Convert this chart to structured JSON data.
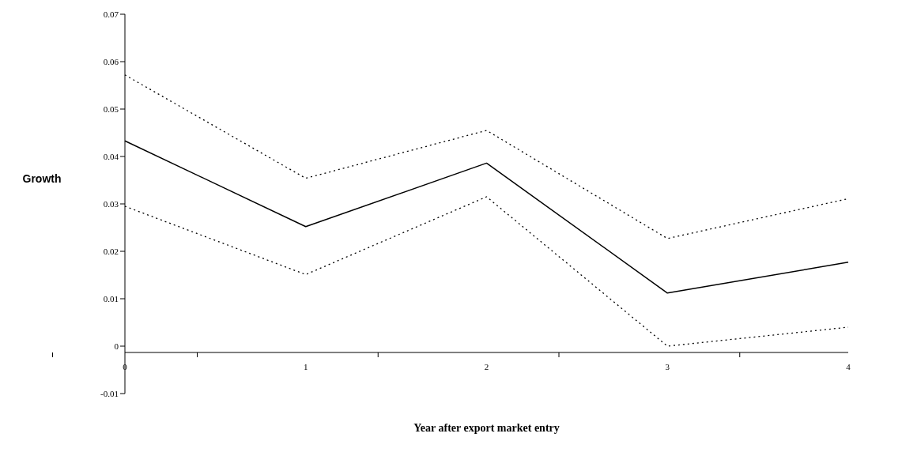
{
  "chart_data": {
    "type": "line",
    "xlabel": "Year after export market entry",
    "ylabel": "Growth",
    "categories": [
      "0",
      "1",
      "2",
      "3",
      "4"
    ],
    "series": [
      {
        "color": "#000000",
        "line_style": "solid",
        "values": [
          0.0433,
          0.0252,
          0.0386,
          0.0112,
          0.0177
        ]
      },
      {
        "color": "#000000",
        "line_style": "dotted",
        "values": [
          0.0572,
          0.0354,
          0.0455,
          0.0227,
          0.0311
        ]
      },
      {
        "color": "#000000",
        "line_style": "dotted",
        "values": [
          0.0295,
          0.0151,
          0.0315,
          0,
          0.004
        ]
      }
    ],
    "ylim": [
      -0.01,
      0.07
    ],
    "yticks": [
      -0.01,
      0,
      0.01,
      0.02,
      0.03,
      0.04,
      0.05,
      0.06,
      0.07
    ]
  }
}
